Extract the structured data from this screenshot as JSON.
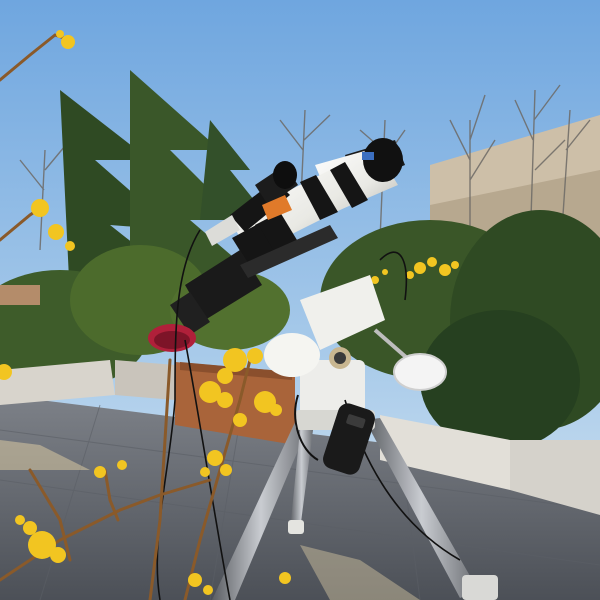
{
  "scene": {
    "description_free": true,
    "icons": [
      "telescope-icon",
      "tripod-icon",
      "hand-controller-icon"
    ],
    "colors": {
      "sky_top": "#6fa6df",
      "sky_bottom": "#cfe3f2",
      "tube_white": "#f2f2ee",
      "tube_black": "#151515",
      "accent_orange": "#e07a2a",
      "accent_red": "#b0203a",
      "blossom": "#f2c521",
      "pavement": "#6d7178",
      "foliage_dark": "#2f4a23",
      "foliage_mid": "#4c6b2c"
    }
  }
}
